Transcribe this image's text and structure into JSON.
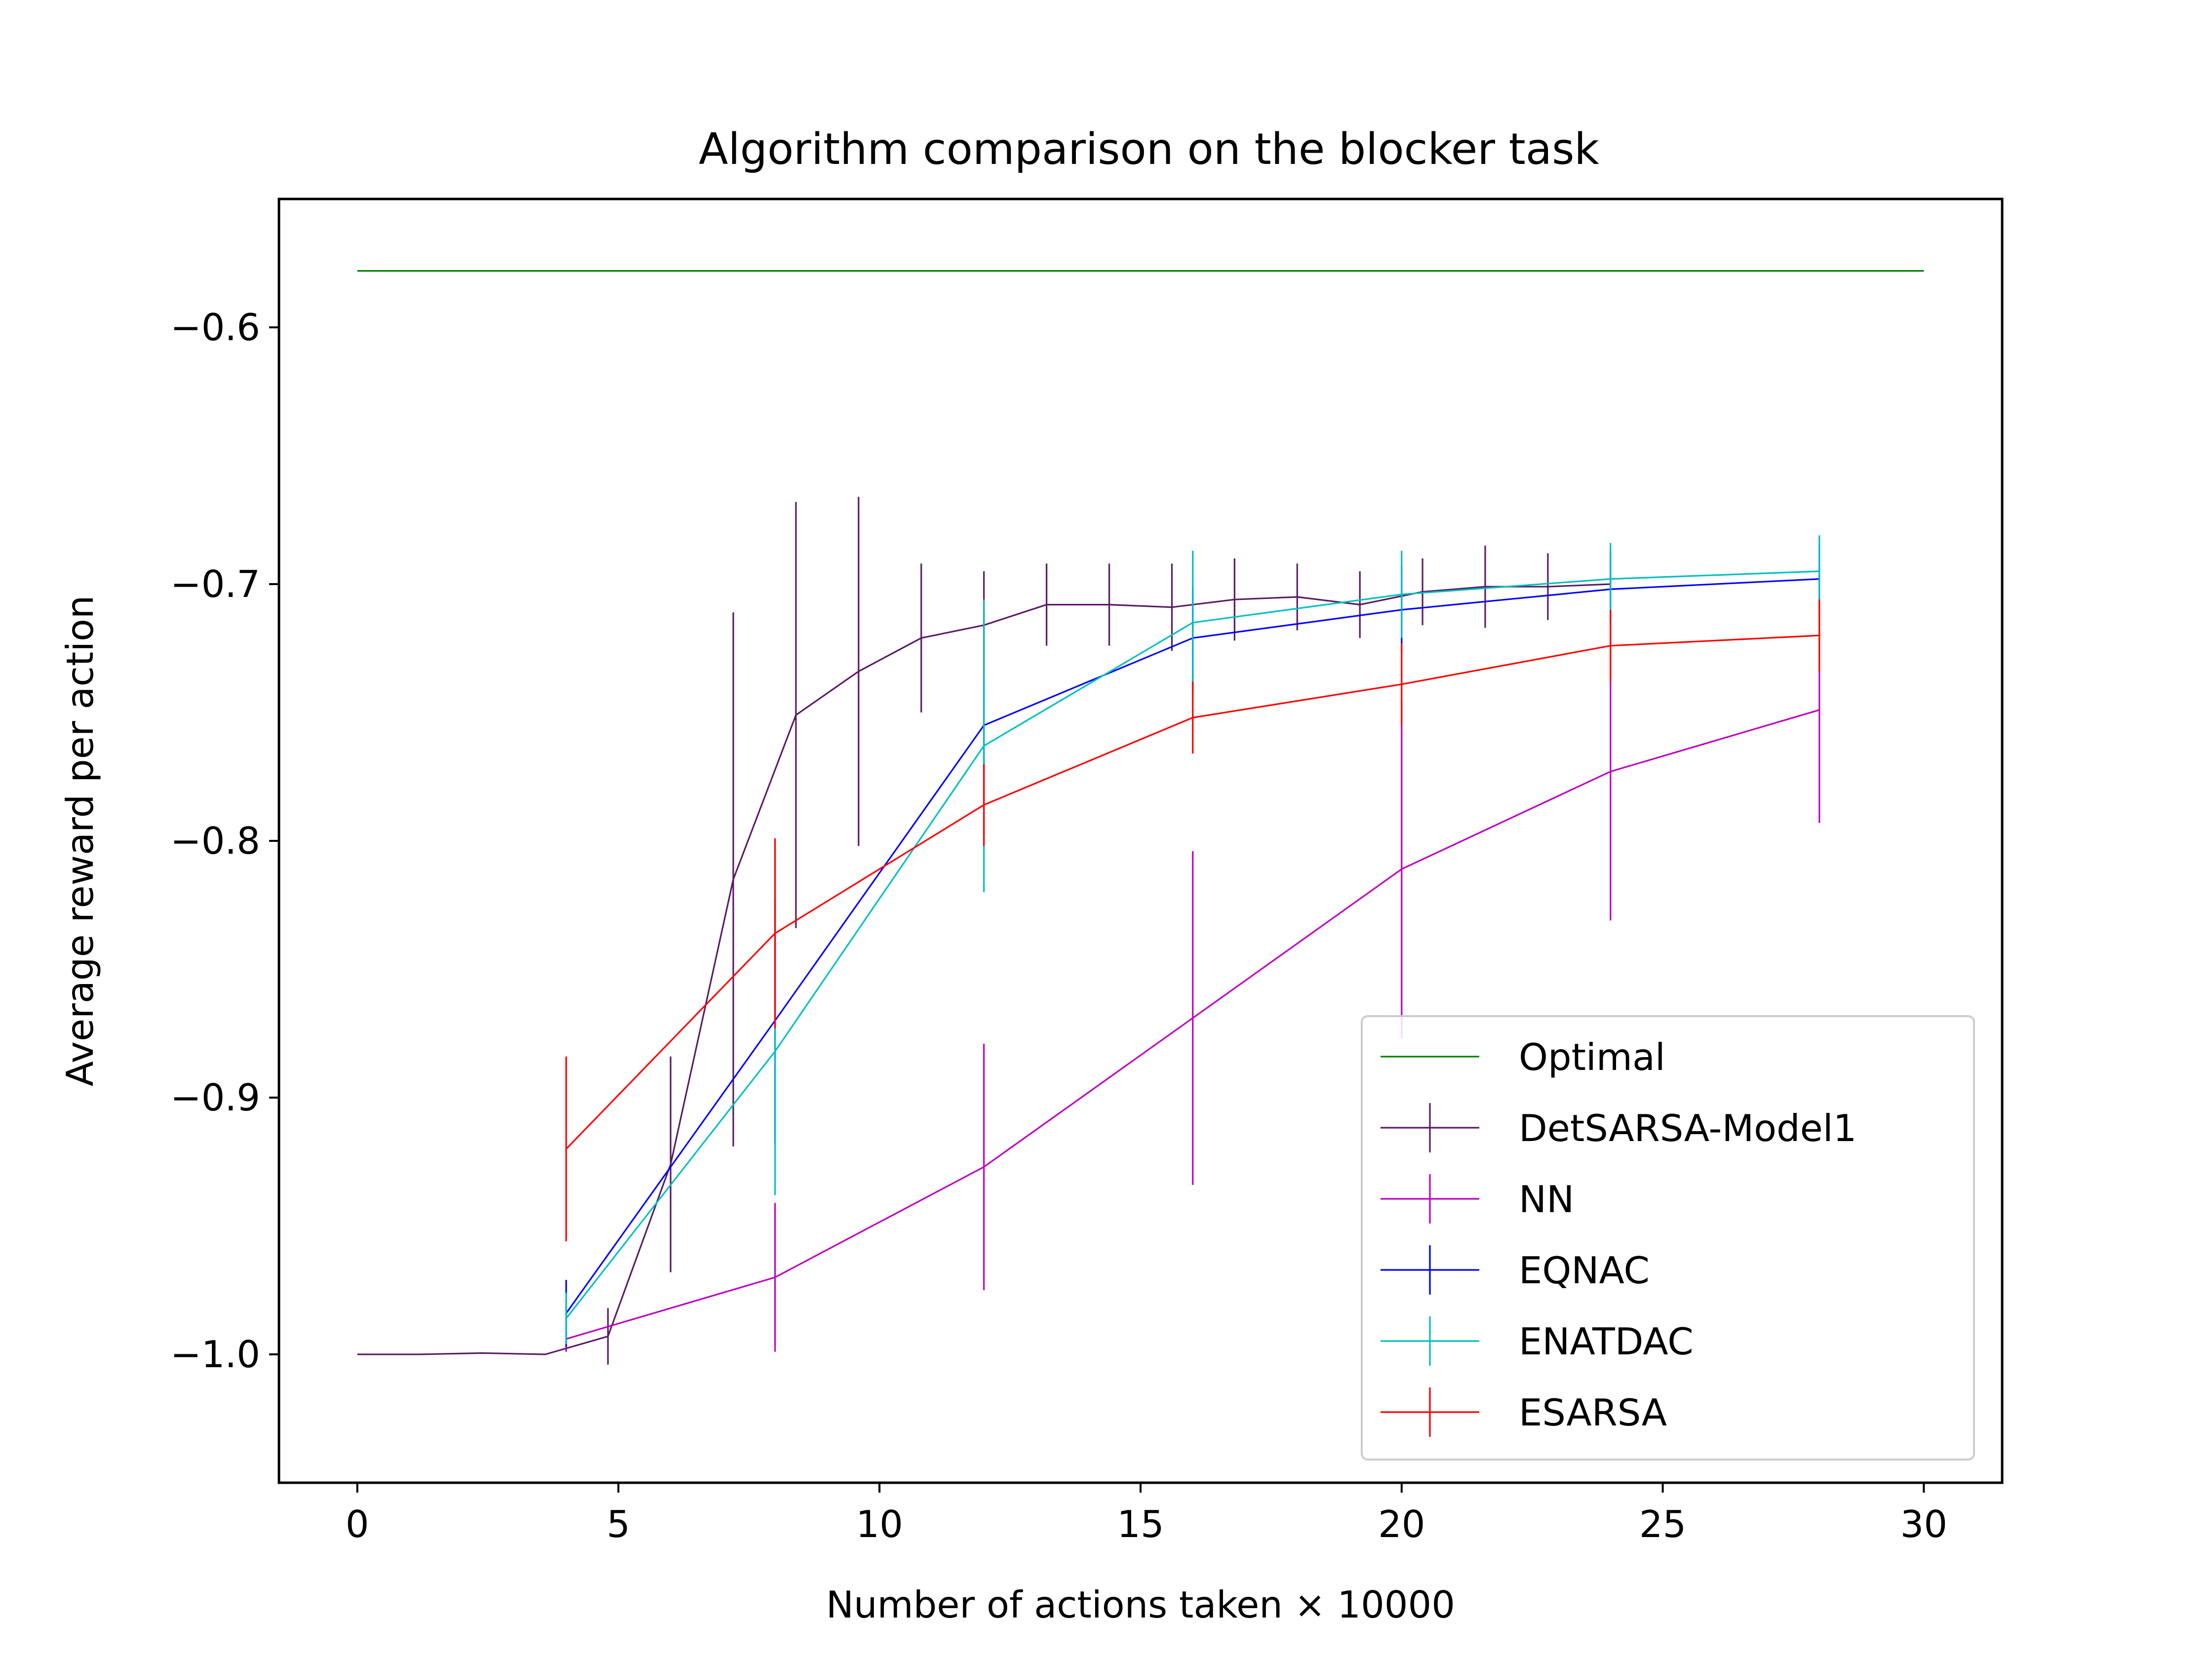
{
  "chart_data": {
    "type": "line",
    "title": "Algorithm comparison on the blocker task",
    "xlabel": "Number of actions taken × 10000",
    "ylabel": "Average reward per action",
    "xlim": [
      -1.5,
      31.5
    ],
    "ylim": [
      -1.05,
      -0.55
    ],
    "xticks": [
      0,
      5,
      10,
      15,
      20,
      25,
      30
    ],
    "xtick_labels": [
      "0",
      "5",
      "10",
      "15",
      "20",
      "25",
      "30"
    ],
    "yticks": [
      -1.0,
      -0.9,
      -0.8,
      -0.7,
      -0.6
    ],
    "ytick_labels": [
      "−1.0",
      "−0.9",
      "−0.8",
      "−0.7",
      "−0.6"
    ],
    "grid": false,
    "legend_position": "lower right",
    "series": [
      {
        "name": "Optimal",
        "color": "#008000",
        "x": [
          0,
          30
        ],
        "y": [
          -0.578,
          -0.578
        ],
        "err": null
      },
      {
        "name": "DetSARSA-Model1",
        "color": "#5a1a63",
        "x": [
          0,
          1.2,
          2.4,
          3.6,
          4.8,
          6.0,
          7.2,
          8.4,
          9.6,
          10.8,
          12.0,
          13.2,
          14.4,
          15.6,
          16.8,
          18.0,
          19.2,
          20.4,
          21.6,
          22.8,
          24.0
        ],
        "y": [
          -1.0,
          -1.0,
          -0.9995,
          -1.0,
          -0.993,
          -0.926,
          -0.815,
          -0.751,
          -0.734,
          -0.721,
          -0.716,
          -0.708,
          -0.708,
          -0.709,
          -0.706,
          -0.705,
          -0.708,
          -0.703,
          -0.701,
          -0.701,
          -0.7
        ],
        "err": [
          0.0,
          0.0,
          0.0,
          0.0,
          0.011,
          0.042,
          0.104,
          0.083,
          0.068,
          0.029,
          0.021,
          0.016,
          0.016,
          0.017,
          0.016,
          0.013,
          0.013,
          0.013,
          0.016,
          0.013,
          0.013
        ]
      },
      {
        "name": "NN",
        "color": "#bf00bf",
        "x": [
          4,
          8,
          12,
          16,
          20,
          24,
          28
        ],
        "y": [
          -0.994,
          -0.97,
          -0.927,
          -0.869,
          -0.811,
          -0.773,
          -0.749
        ],
        "err": [
          0.005,
          0.029,
          0.048,
          0.065,
          0.066,
          0.058,
          0.044
        ]
      },
      {
        "name": "EQNAC",
        "color": "#0000ff",
        "x": [
          4,
          8,
          12,
          16,
          20,
          24,
          28
        ],
        "y": [
          -0.984,
          -0.87,
          -0.755,
          -0.721,
          -0.71,
          -0.702,
          -0.698
        ],
        "err": [
          0.013,
          0.048,
          0.018,
          0.02,
          0.017,
          0.014,
          0.014
        ]
      },
      {
        "name": "ENATDAC",
        "color": "#00bfbf",
        "x": [
          4,
          8,
          12,
          16,
          20,
          24,
          28
        ],
        "y": [
          -0.986,
          -0.882,
          -0.763,
          -0.715,
          -0.704,
          -0.698,
          -0.695
        ],
        "err": [
          0.01,
          0.056,
          0.057,
          0.028,
          0.017,
          0.014,
          0.014
        ]
      },
      {
        "name": "ESARSA",
        "color": "#ff0000",
        "x": [
          4,
          8,
          12,
          16,
          20,
          24,
          28
        ],
        "y": [
          -0.92,
          -0.836,
          -0.786,
          -0.752,
          -0.739,
          -0.724,
          -0.72
        ],
        "err": [
          0.036,
          0.037,
          0.016,
          0.014,
          0.016,
          0.014,
          0.014
        ]
      }
    ]
  }
}
